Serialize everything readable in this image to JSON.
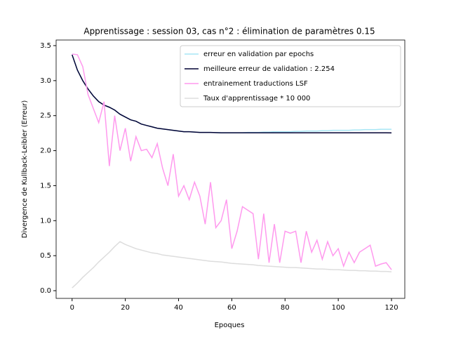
{
  "chart_data": {
    "type": "line",
    "title": "Apprentissage : session 03, cas n°2 : élimination de paramètres 0.15",
    "xlabel": "Epoques",
    "ylabel": "Divergence de Kullback-Leibler (Erreur)",
    "x": [
      0,
      2,
      4,
      6,
      8,
      10,
      12,
      14,
      16,
      18,
      20,
      22,
      24,
      26,
      28,
      30,
      32,
      34,
      36,
      38,
      40,
      42,
      44,
      46,
      48,
      50,
      52,
      54,
      56,
      58,
      60,
      62,
      64,
      66,
      68,
      70,
      72,
      74,
      76,
      78,
      80,
      82,
      84,
      86,
      88,
      90,
      92,
      94,
      96,
      98,
      100,
      102,
      104,
      106,
      108,
      110,
      112,
      114,
      116,
      118,
      120
    ],
    "series": [
      {
        "name": "erreur en validation par epochs",
        "color": "#a6e6f5",
        "values": [
          3.37,
          3.15,
          3.0,
          2.88,
          2.78,
          2.7,
          2.65,
          2.62,
          2.58,
          2.52,
          2.48,
          2.44,
          2.42,
          2.38,
          2.36,
          2.34,
          2.32,
          2.31,
          2.3,
          2.29,
          2.28,
          2.27,
          2.27,
          2.265,
          2.26,
          2.26,
          2.26,
          2.258,
          2.255,
          2.255,
          2.255,
          2.255,
          2.255,
          2.26,
          2.26,
          2.26,
          2.265,
          2.265,
          2.27,
          2.27,
          2.27,
          2.27,
          2.275,
          2.275,
          2.28,
          2.28,
          2.28,
          2.285,
          2.285,
          2.29,
          2.29,
          2.29,
          2.29,
          2.295,
          2.295,
          2.3,
          2.3,
          2.3,
          2.305,
          2.305,
          2.305
        ]
      },
      {
        "name": "meilleure erreur de validation : 2.254",
        "color": "#000033",
        "values": [
          3.37,
          3.15,
          3.0,
          2.88,
          2.78,
          2.7,
          2.65,
          2.62,
          2.58,
          2.52,
          2.48,
          2.44,
          2.42,
          2.38,
          2.36,
          2.34,
          2.32,
          2.31,
          2.3,
          2.29,
          2.28,
          2.27,
          2.27,
          2.265,
          2.26,
          2.26,
          2.26,
          2.258,
          2.255,
          2.255,
          2.255,
          2.255,
          2.255,
          2.255,
          2.255,
          2.255,
          2.255,
          2.255,
          2.255,
          2.255,
          2.255,
          2.255,
          2.255,
          2.255,
          2.255,
          2.255,
          2.255,
          2.255,
          2.255,
          2.255,
          2.255,
          2.255,
          2.255,
          2.255,
          2.255,
          2.255,
          2.255,
          2.255,
          2.255,
          2.255,
          2.254
        ]
      },
      {
        "name": "entrainement traductions LSF",
        "color": "#ff99ee",
        "values": [
          3.38,
          3.37,
          3.2,
          2.8,
          2.6,
          2.4,
          2.7,
          1.78,
          2.5,
          2.0,
          2.32,
          1.85,
          2.2,
          2.0,
          2.02,
          1.9,
          2.1,
          1.75,
          1.5,
          1.95,
          1.35,
          1.5,
          1.3,
          1.55,
          1.35,
          0.95,
          1.55,
          0.9,
          1.0,
          1.3,
          0.6,
          0.85,
          1.2,
          1.15,
          1.1,
          0.45,
          1.1,
          0.4,
          0.95,
          0.4,
          0.85,
          0.82,
          0.85,
          0.4,
          0.85,
          0.55,
          0.72,
          0.45,
          0.7,
          0.5,
          0.6,
          0.35,
          0.55,
          0.4,
          0.55,
          0.6,
          0.65,
          0.35,
          0.38,
          0.4,
          0.3
        ]
      },
      {
        "name": "Taux d'apprentissage * 10 000",
        "color": "#dddddd",
        "values": [
          0.04,
          0.11,
          0.19,
          0.26,
          0.33,
          0.41,
          0.48,
          0.55,
          0.63,
          0.7,
          0.66,
          0.63,
          0.6,
          0.58,
          0.56,
          0.54,
          0.53,
          0.51,
          0.5,
          0.49,
          0.48,
          0.47,
          0.46,
          0.45,
          0.44,
          0.43,
          0.42,
          0.415,
          0.41,
          0.4,
          0.39,
          0.385,
          0.38,
          0.375,
          0.37,
          0.36,
          0.355,
          0.35,
          0.345,
          0.34,
          0.335,
          0.33,
          0.33,
          0.325,
          0.32,
          0.315,
          0.31,
          0.31,
          0.305,
          0.3,
          0.3,
          0.295,
          0.29,
          0.29,
          0.285,
          0.285,
          0.28,
          0.28,
          0.275,
          0.275,
          0.27
        ]
      }
    ],
    "xlim": [
      -6,
      125
    ],
    "ylim": [
      -0.11,
      3.58
    ],
    "xticks": [
      0,
      20,
      40,
      60,
      80,
      100,
      120
    ],
    "yticks": [
      {
        "value": 0,
        "label": "0.0"
      },
      {
        "value": 0.5,
        "label": "0.5"
      },
      {
        "value": 1,
        "label": "1.0"
      },
      {
        "value": 1.5,
        "label": "1.5"
      },
      {
        "value": 2,
        "label": "2.0"
      },
      {
        "value": 2.5,
        "label": "2.5"
      },
      {
        "value": 3,
        "label": "3.0"
      },
      {
        "value": 3.5,
        "label": "3.5"
      }
    ],
    "grid": false,
    "legend": "upper right"
  }
}
